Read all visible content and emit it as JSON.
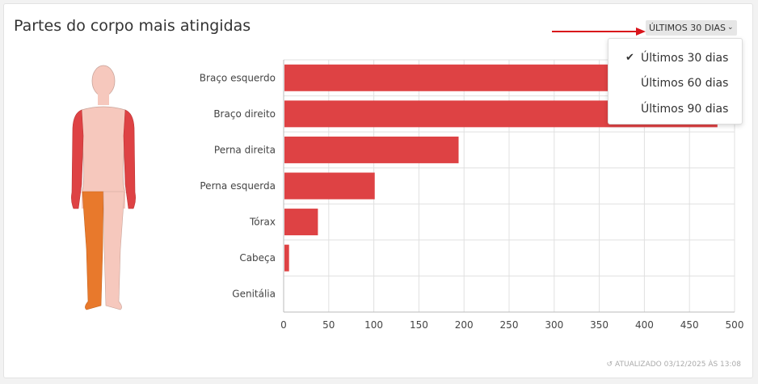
{
  "card": {
    "title": "Partes do corpo mais atingidas",
    "updated_label": "ATUALIZADO 03/12/2025 ÀS 13:08"
  },
  "range_selector": {
    "selected_label": "ÚLTIMOS 30 DIAS",
    "options": [
      {
        "label": "Últimos 30 dias",
        "checked": true
      },
      {
        "label": "Últimos 60 dias",
        "checked": false
      },
      {
        "label": "Últimos 90 dias",
        "checked": false
      }
    ]
  },
  "body_figure": {
    "highlight_colors": {
      "arms": "#de4244",
      "right_leg": "#e8792c",
      "skin": "#f6c8bd",
      "outline": "#c9a49a"
    }
  },
  "colors": {
    "bar": "#de4244",
    "grid": "#e0e0e0",
    "arrow": "#d9141b"
  },
  "chart_data": {
    "type": "bar",
    "orientation": "horizontal",
    "categories": [
      "Braço esquerdo",
      "Braço direito",
      "Perna direita",
      "Perna esquerda",
      "Tórax",
      "Cabeça",
      "Genitália"
    ],
    "values": [
      480,
      481,
      194,
      101,
      38,
      6,
      0
    ],
    "xlim": [
      0,
      500
    ],
    "xticks": [
      "0",
      "50",
      "100",
      "150",
      "200",
      "250",
      "300",
      "350",
      "400",
      "450",
      "500"
    ],
    "grid": true
  }
}
